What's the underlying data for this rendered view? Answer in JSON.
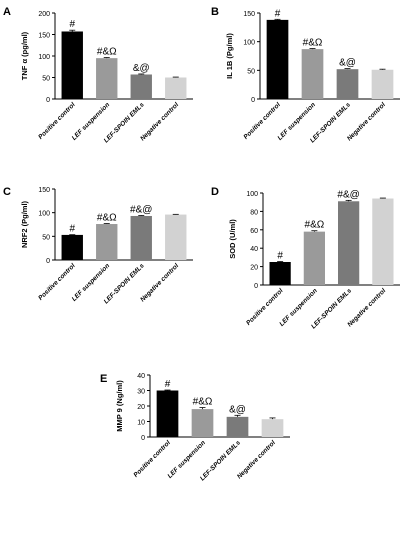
{
  "colors": {
    "positive": "#000000",
    "lef": "#9a9a9a",
    "spoin": "#7a7a7a",
    "negative": "#d2d2d2",
    "axis": "#000000"
  },
  "chart_data": [
    {
      "panel": "A",
      "type": "bar",
      "categories": [
        "Positive control",
        "LEF suspension",
        "LEF-SPOIN EMLs",
        "Negative control"
      ],
      "values": [
        157,
        95,
        57,
        50
      ],
      "errors": [
        3,
        1.5,
        1.2,
        1
      ],
      "annotations": [
        "#",
        "#&Ω",
        "&@",
        ""
      ],
      "ylabel": "TNF α (pg/ml)",
      "ylim": [
        0,
        200
      ],
      "yticks": [
        0,
        50,
        100,
        150,
        200
      ]
    },
    {
      "panel": "B",
      "type": "bar",
      "categories": [
        "Positive control",
        "LEF suspension",
        "LEF-SPOIN EMLs",
        "Negative control"
      ],
      "values": [
        138,
        87,
        52,
        51
      ],
      "errors": [
        1,
        1,
        1,
        1
      ],
      "annotations": [
        "#",
        "#&Ω",
        "&@",
        ""
      ],
      "ylabel": "IL 1B (Pg/ml)",
      "ylim": [
        0,
        150
      ],
      "yticks": [
        0,
        50,
        100,
        150
      ]
    },
    {
      "panel": "C",
      "type": "bar",
      "categories": [
        "Positive control",
        "LEF suspension",
        "LEF-SPOIN EMLs",
        "Negative control"
      ],
      "values": [
        53,
        76,
        93,
        96
      ],
      "errors": [
        0.5,
        1,
        1,
        0.5
      ],
      "annotations": [
        "#",
        "#&Ω",
        "#&@",
        ""
      ],
      "ylabel": "NRF2 (Pg/ml)",
      "ylim": [
        0,
        150
      ],
      "yticks": [
        0,
        50,
        100,
        150
      ]
    },
    {
      "panel": "D",
      "type": "bar",
      "categories": [
        "Positive control",
        "LEF suspension",
        "LEF-SPOIN EMLs",
        "Negative control"
      ],
      "values": [
        25,
        58,
        91,
        94
      ],
      "errors": [
        0.5,
        1,
        1,
        0.5
      ],
      "annotations": [
        "#",
        "#&Ω",
        "#&@",
        ""
      ],
      "ylabel": "SOD (U/ml)",
      "ylim": [
        0,
        100
      ],
      "yticks": [
        0,
        20,
        40,
        60,
        80,
        100
      ]
    },
    {
      "panel": "E",
      "type": "bar",
      "categories": [
        "Positive control",
        "LEF suspension",
        "LEF-SPOIN EMLs",
        "Negative control"
      ],
      "values": [
        30,
        18,
        13,
        11.5
      ],
      "errors": [
        0.3,
        1,
        1,
        0.8
      ],
      "annotations": [
        "#",
        "#&Ω",
        "&@",
        ""
      ],
      "ylabel": "MMP 9 (Ng/ml)",
      "ylim": [
        0,
        40
      ],
      "yticks": [
        0,
        10,
        20,
        30,
        40
      ]
    }
  ]
}
